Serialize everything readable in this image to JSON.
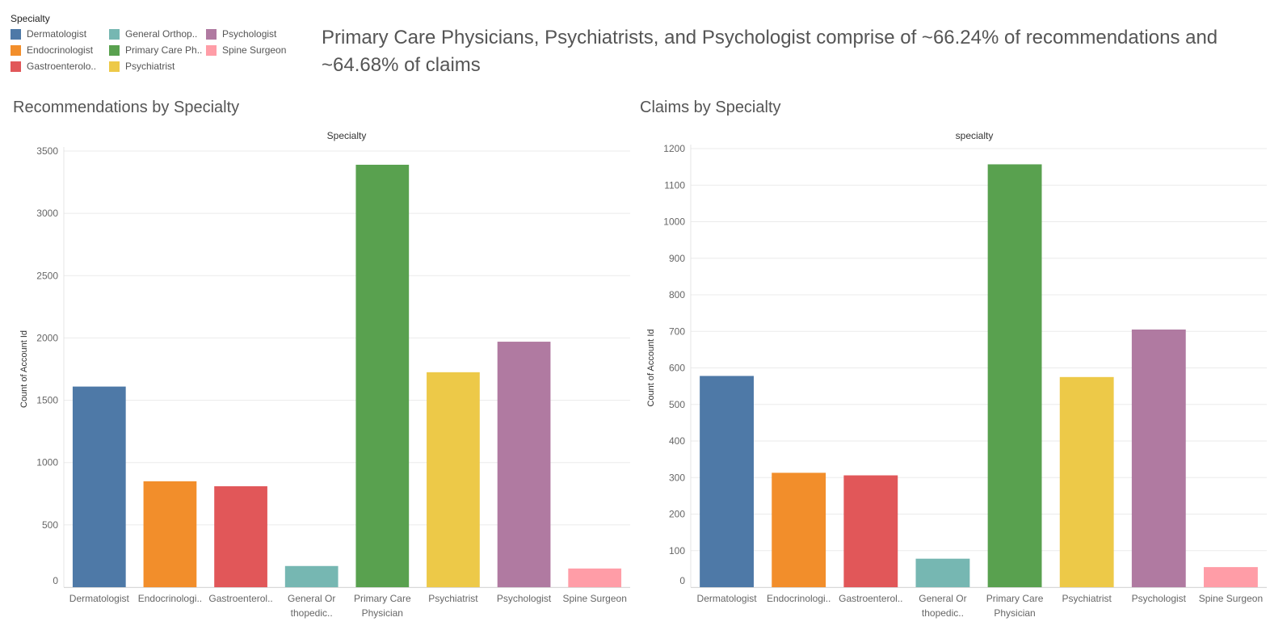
{
  "legend": {
    "title": "Specialty",
    "items": [
      {
        "label": "Dermatologist",
        "color": "#4e79a7"
      },
      {
        "label": "Endocrinologist",
        "color": "#f28e2b"
      },
      {
        "label": "Gastroenterolo..",
        "color": "#e15759"
      },
      {
        "label": "General Orthop..",
        "color": "#76b7b2"
      },
      {
        "label": "Primary Care Ph..",
        "color": "#59a14f"
      },
      {
        "label": "Psychiatrist",
        "color": "#edc948"
      },
      {
        "label": "Psychologist",
        "color": "#b07aa1"
      },
      {
        "label": "Spine Surgeon",
        "color": "#ff9da7"
      }
    ]
  },
  "headline": "Primary Care Physicians, Psychiatrists, and Psychologist comprise of ~66.24% of recommendations and ~64.68% of claims",
  "chart_data": [
    {
      "type": "bar",
      "title": "Recommendations by Specialty",
      "xlabel": "Specialty",
      "ylabel": "Count of Account Id",
      "ylim": [
        0,
        3500
      ],
      "yticks": [
        0,
        500,
        1000,
        1500,
        2000,
        2500,
        3000,
        3500
      ],
      "grid": true,
      "categories": [
        [
          "Dermatologist"
        ],
        [
          "Endocrinologi.."
        ],
        [
          "Gastroenterol.."
        ],
        [
          "General Or",
          "thopedic.."
        ],
        [
          "Primary Care",
          "Physician"
        ],
        [
          "Psychiatrist"
        ],
        [
          "Psychologist"
        ],
        [
          "Spine Surgeon"
        ]
      ],
      "values": [
        1610,
        850,
        810,
        170,
        3390,
        1725,
        1970,
        150
      ],
      "colors": [
        "#4e79a7",
        "#f28e2b",
        "#e15759",
        "#76b7b2",
        "#59a14f",
        "#edc948",
        "#b07aa1",
        "#ff9da7"
      ]
    },
    {
      "type": "bar",
      "title": "Claims by Specialty",
      "xlabel": "specialty",
      "ylabel": "Count of Account Id",
      "ylim": [
        0,
        1200
      ],
      "yticks": [
        0,
        100,
        200,
        300,
        400,
        500,
        600,
        700,
        800,
        900,
        1000,
        1100,
        1200
      ],
      "grid": true,
      "categories": [
        [
          "Dermatologist"
        ],
        [
          "Endocrinologi.."
        ],
        [
          "Gastroenterol.."
        ],
        [
          "General Or",
          "thopedic.."
        ],
        [
          "Primary Care",
          "Physician"
        ],
        [
          "Psychiatrist"
        ],
        [
          "Psychologist"
        ],
        [
          "Spine Surgeon"
        ]
      ],
      "values": [
        578,
        313,
        306,
        78,
        1157,
        575,
        705,
        55
      ],
      "colors": [
        "#4e79a7",
        "#f28e2b",
        "#e15759",
        "#76b7b2",
        "#59a14f",
        "#edc948",
        "#b07aa1",
        "#ff9da7"
      ]
    }
  ]
}
